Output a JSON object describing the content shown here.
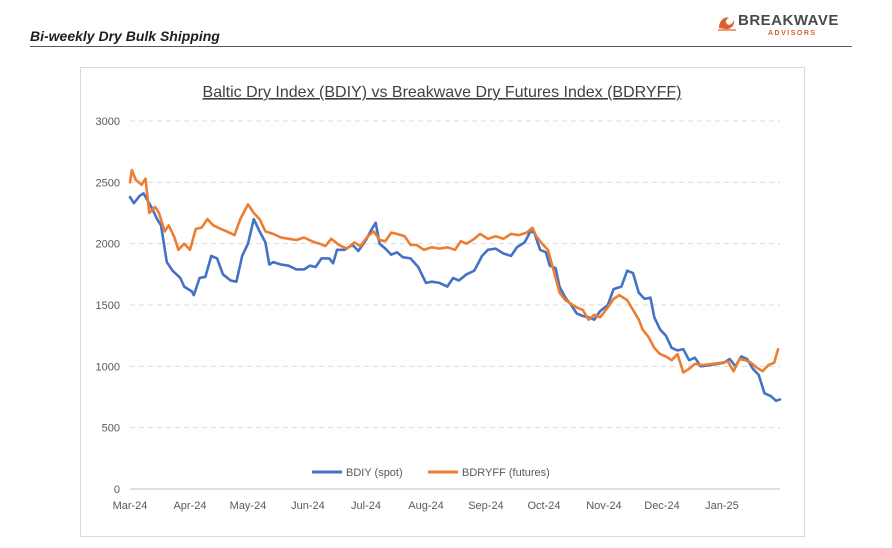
{
  "header": {
    "report_title": "Bi-weekly Dry Bulk Shipping",
    "logo_brand": "BREAKWAVE",
    "logo_sub": "ADVISORS"
  },
  "colors": {
    "bdiy": "#4472C4",
    "bdryff": "#ED7D31",
    "logo_orange": "#D9622B",
    "grid": "#D9D9D9"
  },
  "chart_data": {
    "type": "line",
    "title": "Baltic Dry Index (BDIY) vs Breakwave Dry Futures Index (BDRYFF)",
    "xlabel": "",
    "ylabel": "",
    "ylim": [
      0,
      3000
    ],
    "yticks": [
      0,
      500,
      1000,
      1500,
      2000,
      2500,
      3000
    ],
    "xlim": [
      "2024-03-01",
      "2025-01-31"
    ],
    "xticks": [
      "2024-03-01",
      "2024-04-01",
      "2024-05-01",
      "2024-06-01",
      "2024-07-01",
      "2024-08-01",
      "2024-09-01",
      "2024-10-01",
      "2024-11-01",
      "2024-12-01",
      "2025-01-01"
    ],
    "xtick_labels": [
      "Mar-24",
      "Apr-24",
      "May-24",
      "Jun-24",
      "Jul-24",
      "Aug-24",
      "Sep-24",
      "Oct-24",
      "Nov-24",
      "Dec-24",
      "Jan-25"
    ],
    "grid": "horizontal-dashed",
    "legend_position": "bottom",
    "series": [
      {
        "name": "BDIY (spot)",
        "color": "#4472C4",
        "points": [
          [
            "2024-03-01",
            2380
          ],
          [
            "2024-03-03",
            2330
          ],
          [
            "2024-03-06",
            2390
          ],
          [
            "2024-03-08",
            2410
          ],
          [
            "2024-03-12",
            2300
          ],
          [
            "2024-03-15",
            2200
          ],
          [
            "2024-03-17",
            2150
          ],
          [
            "2024-03-20",
            1850
          ],
          [
            "2024-03-23",
            1780
          ],
          [
            "2024-03-27",
            1720
          ],
          [
            "2024-03-29",
            1650
          ],
          [
            "2024-04-02",
            1610
          ],
          [
            "2024-04-03",
            1580
          ],
          [
            "2024-04-06",
            1720
          ],
          [
            "2024-04-09",
            1730
          ],
          [
            "2024-04-12",
            1900
          ],
          [
            "2024-04-15",
            1880
          ],
          [
            "2024-04-18",
            1750
          ],
          [
            "2024-04-22",
            1700
          ],
          [
            "2024-04-25",
            1690
          ],
          [
            "2024-04-28",
            1900
          ],
          [
            "2024-05-01",
            2000
          ],
          [
            "2024-05-04",
            2200
          ],
          [
            "2024-05-07",
            2100
          ],
          [
            "2024-05-10",
            2010
          ],
          [
            "2024-05-12",
            1830
          ],
          [
            "2024-05-14",
            1850
          ],
          [
            "2024-05-18",
            1830
          ],
          [
            "2024-05-22",
            1820
          ],
          [
            "2024-05-26",
            1790
          ],
          [
            "2024-05-30",
            1790
          ],
          [
            "2024-06-02",
            1820
          ],
          [
            "2024-06-05",
            1810
          ],
          [
            "2024-06-08",
            1880
          ],
          [
            "2024-06-12",
            1880
          ],
          [
            "2024-06-14",
            1840
          ],
          [
            "2024-06-16",
            1950
          ],
          [
            "2024-06-20",
            1950
          ],
          [
            "2024-06-24",
            1990
          ],
          [
            "2024-06-27",
            1940
          ],
          [
            "2024-07-01",
            2030
          ],
          [
            "2024-07-04",
            2120
          ],
          [
            "2024-07-06",
            2170
          ],
          [
            "2024-07-08",
            2000
          ],
          [
            "2024-07-11",
            1960
          ],
          [
            "2024-07-14",
            1910
          ],
          [
            "2024-07-17",
            1930
          ],
          [
            "2024-07-20",
            1890
          ],
          [
            "2024-07-24",
            1880
          ],
          [
            "2024-07-28",
            1810
          ],
          [
            "2024-08-01",
            1680
          ],
          [
            "2024-08-04",
            1690
          ],
          [
            "2024-08-08",
            1680
          ],
          [
            "2024-08-12",
            1650
          ],
          [
            "2024-08-15",
            1720
          ],
          [
            "2024-08-18",
            1700
          ],
          [
            "2024-08-22",
            1750
          ],
          [
            "2024-08-26",
            1780
          ],
          [
            "2024-08-30",
            1900
          ],
          [
            "2024-09-02",
            1950
          ],
          [
            "2024-09-06",
            1960
          ],
          [
            "2024-09-10",
            1920
          ],
          [
            "2024-09-14",
            1900
          ],
          [
            "2024-09-17",
            1970
          ],
          [
            "2024-09-21",
            2010
          ],
          [
            "2024-09-24",
            2100
          ],
          [
            "2024-09-26",
            2090
          ],
          [
            "2024-09-29",
            1950
          ],
          [
            "2024-10-02",
            1930
          ],
          [
            "2024-10-04",
            1820
          ],
          [
            "2024-10-07",
            1800
          ],
          [
            "2024-10-09",
            1650
          ],
          [
            "2024-10-12",
            1560
          ],
          [
            "2024-10-15",
            1500
          ],
          [
            "2024-10-18",
            1430
          ],
          [
            "2024-10-21",
            1410
          ],
          [
            "2024-10-24",
            1400
          ],
          [
            "2024-10-27",
            1380
          ],
          [
            "2024-10-30",
            1450
          ],
          [
            "2024-11-03",
            1500
          ],
          [
            "2024-11-06",
            1630
          ],
          [
            "2024-11-10",
            1650
          ],
          [
            "2024-11-13",
            1780
          ],
          [
            "2024-11-16",
            1760
          ],
          [
            "2024-11-19",
            1600
          ],
          [
            "2024-11-22",
            1550
          ],
          [
            "2024-11-25",
            1560
          ],
          [
            "2024-11-27",
            1400
          ],
          [
            "2024-11-30",
            1300
          ],
          [
            "2024-12-03",
            1250
          ],
          [
            "2024-12-06",
            1150
          ],
          [
            "2024-12-09",
            1130
          ],
          [
            "2024-12-12",
            1140
          ],
          [
            "2024-12-15",
            1050
          ],
          [
            "2024-12-18",
            1070
          ],
          [
            "2024-12-21",
            1000
          ],
          [
            "2024-12-26",
            1010
          ],
          [
            "2025-01-02",
            1030
          ],
          [
            "2025-01-05",
            1060
          ],
          [
            "2025-01-08",
            1000
          ],
          [
            "2025-01-11",
            1080
          ],
          [
            "2025-01-14",
            1060
          ],
          [
            "2025-01-17",
            980
          ],
          [
            "2025-01-20",
            930
          ],
          [
            "2025-01-23",
            780
          ],
          [
            "2025-01-26",
            760
          ],
          [
            "2025-01-29",
            720
          ],
          [
            "2025-01-31",
            730
          ]
        ]
      },
      {
        "name": "BDRYFF (futures)",
        "color": "#ED7D31",
        "points": [
          [
            "2024-03-01",
            2500
          ],
          [
            "2024-03-02",
            2600
          ],
          [
            "2024-03-04",
            2520
          ],
          [
            "2024-03-07",
            2480
          ],
          [
            "2024-03-09",
            2530
          ],
          [
            "2024-03-11",
            2250
          ],
          [
            "2024-03-14",
            2300
          ],
          [
            "2024-03-16",
            2250
          ],
          [
            "2024-03-19",
            2100
          ],
          [
            "2024-03-21",
            2150
          ],
          [
            "2024-03-24",
            2050
          ],
          [
            "2024-03-26",
            1950
          ],
          [
            "2024-03-29",
            2000
          ],
          [
            "2024-04-01",
            1950
          ],
          [
            "2024-04-04",
            2120
          ],
          [
            "2024-04-07",
            2130
          ],
          [
            "2024-04-10",
            2200
          ],
          [
            "2024-04-13",
            2150
          ],
          [
            "2024-04-17",
            2120
          ],
          [
            "2024-04-20",
            2100
          ],
          [
            "2024-04-24",
            2070
          ],
          [
            "2024-04-27",
            2200
          ],
          [
            "2024-05-01",
            2320
          ],
          [
            "2024-05-04",
            2250
          ],
          [
            "2024-05-07",
            2200
          ],
          [
            "2024-05-10",
            2100
          ],
          [
            "2024-05-14",
            2080
          ],
          [
            "2024-05-18",
            2050
          ],
          [
            "2024-05-22",
            2040
          ],
          [
            "2024-05-26",
            2030
          ],
          [
            "2024-05-30",
            2050
          ],
          [
            "2024-06-03",
            2020
          ],
          [
            "2024-06-07",
            2000
          ],
          [
            "2024-06-10",
            1980
          ],
          [
            "2024-06-13",
            2040
          ],
          [
            "2024-06-17",
            1990
          ],
          [
            "2024-06-21",
            1960
          ],
          [
            "2024-06-25",
            2010
          ],
          [
            "2024-06-28",
            1980
          ],
          [
            "2024-07-02",
            2060
          ],
          [
            "2024-07-05",
            2100
          ],
          [
            "2024-07-08",
            2030
          ],
          [
            "2024-07-11",
            2020
          ],
          [
            "2024-07-14",
            2090
          ],
          [
            "2024-07-17",
            2080
          ],
          [
            "2024-07-21",
            2060
          ],
          [
            "2024-07-24",
            1990
          ],
          [
            "2024-07-27",
            1990
          ],
          [
            "2024-07-31",
            1950
          ],
          [
            "2024-08-04",
            1970
          ],
          [
            "2024-08-08",
            1960
          ],
          [
            "2024-08-12",
            1970
          ],
          [
            "2024-08-16",
            1950
          ],
          [
            "2024-08-19",
            2020
          ],
          [
            "2024-08-22",
            2000
          ],
          [
            "2024-08-26",
            2040
          ],
          [
            "2024-08-29",
            2080
          ],
          [
            "2024-09-02",
            2040
          ],
          [
            "2024-09-06",
            2060
          ],
          [
            "2024-09-10",
            2040
          ],
          [
            "2024-09-14",
            2080
          ],
          [
            "2024-09-18",
            2070
          ],
          [
            "2024-09-22",
            2090
          ],
          [
            "2024-09-25",
            2130
          ],
          [
            "2024-09-27",
            2060
          ],
          [
            "2024-09-30",
            2000
          ],
          [
            "2024-10-03",
            1950
          ],
          [
            "2024-10-06",
            1780
          ],
          [
            "2024-10-09",
            1600
          ],
          [
            "2024-10-12",
            1540
          ],
          [
            "2024-10-15",
            1510
          ],
          [
            "2024-10-18",
            1480
          ],
          [
            "2024-10-21",
            1460
          ],
          [
            "2024-10-24",
            1380
          ],
          [
            "2024-10-27",
            1420
          ],
          [
            "2024-10-30",
            1400
          ],
          [
            "2024-11-03",
            1480
          ],
          [
            "2024-11-06",
            1550
          ],
          [
            "2024-11-09",
            1580
          ],
          [
            "2024-11-13",
            1540
          ],
          [
            "2024-11-16",
            1460
          ],
          [
            "2024-11-19",
            1380
          ],
          [
            "2024-11-21",
            1300
          ],
          [
            "2024-11-24",
            1240
          ],
          [
            "2024-11-27",
            1150
          ],
          [
            "2024-11-30",
            1100
          ],
          [
            "2024-12-03",
            1080
          ],
          [
            "2024-12-06",
            1050
          ],
          [
            "2024-12-09",
            1100
          ],
          [
            "2024-12-12",
            950
          ],
          [
            "2024-12-15",
            980
          ],
          [
            "2024-12-18",
            1020
          ],
          [
            "2024-12-22",
            1010
          ],
          [
            "2024-12-27",
            1020
          ],
          [
            "2025-01-01",
            1030
          ],
          [
            "2025-01-04",
            1040
          ],
          [
            "2025-01-07",
            960
          ],
          [
            "2025-01-10",
            1060
          ],
          [
            "2025-01-13",
            1050
          ],
          [
            "2025-01-16",
            1030
          ],
          [
            "2025-01-19",
            990
          ],
          [
            "2025-01-22",
            960
          ],
          [
            "2025-01-25",
            1010
          ],
          [
            "2025-01-28",
            1030
          ],
          [
            "2025-01-30",
            1140
          ]
        ]
      }
    ]
  }
}
